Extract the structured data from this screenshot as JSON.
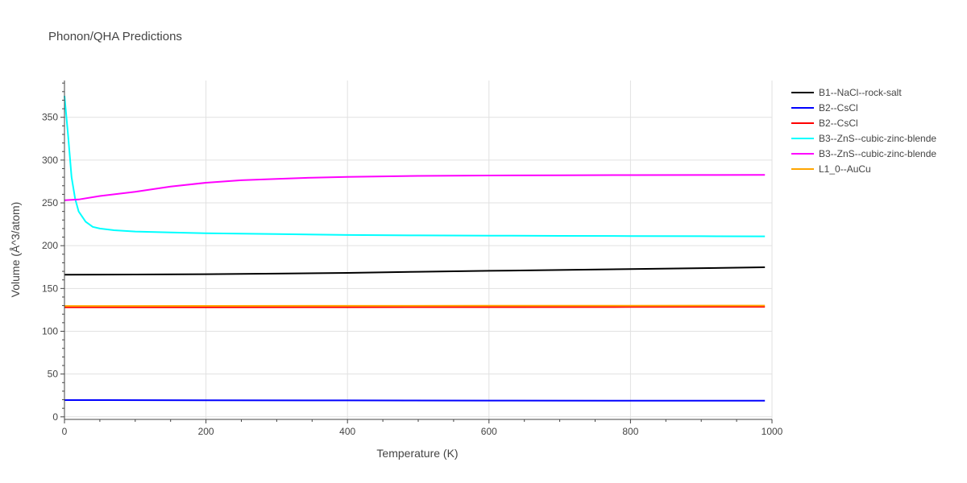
{
  "chart_data": {
    "type": "line",
    "title": "Phonon/QHA Predictions",
    "xlabel": "Temperature (K)",
    "ylabel": "Volume (Å^3/atom)",
    "xlim": [
      0,
      1000
    ],
    "ylim": [
      -3,
      393
    ],
    "x_ticks": [
      0,
      200,
      400,
      600,
      800,
      1000
    ],
    "y_ticks": [
      0,
      50,
      100,
      150,
      200,
      250,
      300,
      350
    ],
    "grid": true,
    "legend_position": "right",
    "series": [
      {
        "name": "B1--NaCl--rock-salt",
        "color": "#000000",
        "x": [
          0,
          100,
          200,
          300,
          400,
          500,
          600,
          700,
          800,
          900,
          990
        ],
        "y": [
          166,
          166.3,
          166.7,
          167.3,
          168.2,
          169.5,
          170.6,
          171.6,
          172.6,
          173.7,
          174.8
        ]
      },
      {
        "name": "B2--CsCl",
        "color": "#0000ff",
        "x": [
          0,
          200,
          400,
          600,
          800,
          990
        ],
        "y": [
          19.6,
          19.4,
          19.2,
          19.0,
          18.9,
          18.8
        ]
      },
      {
        "name": "B2--CsCl",
        "color": "#ff0000",
        "x": [
          0,
          200,
          400,
          600,
          800,
          990
        ],
        "y": [
          128.0,
          128.0,
          128.1,
          128.2,
          128.4,
          128.6
        ]
      },
      {
        "name": "B3--ZnS--cubic-zinc-blende",
        "color": "#00ffff",
        "x": [
          0,
          5,
          10,
          15,
          20,
          30,
          40,
          50,
          70,
          100,
          150,
          200,
          300,
          400,
          500,
          600,
          700,
          800,
          900,
          990
        ],
        "y": [
          375,
          330,
          280,
          255,
          240,
          228,
          222,
          220,
          218,
          216.5,
          215.5,
          214.5,
          213.5,
          212.5,
          212,
          211.7,
          211.5,
          211.3,
          211.1,
          210.9
        ]
      },
      {
        "name": "B3--ZnS--cubic-zinc-blende",
        "color": "#ff00ff",
        "x": [
          0,
          20,
          50,
          100,
          150,
          200,
          250,
          300,
          350,
          400,
          500,
          600,
          700,
          800,
          900,
          990
        ],
        "y": [
          253,
          254,
          258,
          263,
          269,
          273.5,
          276.5,
          278,
          279.5,
          280.3,
          281.5,
          282,
          282.3,
          282.5,
          282.6,
          282.7
        ]
      },
      {
        "name": "L1_0--AuCu",
        "color": "#ffa500",
        "x": [
          0,
          200,
          400,
          600,
          800,
          990
        ],
        "y": [
          129.5,
          129.6,
          129.7,
          129.8,
          129.9,
          130.0
        ]
      }
    ]
  }
}
